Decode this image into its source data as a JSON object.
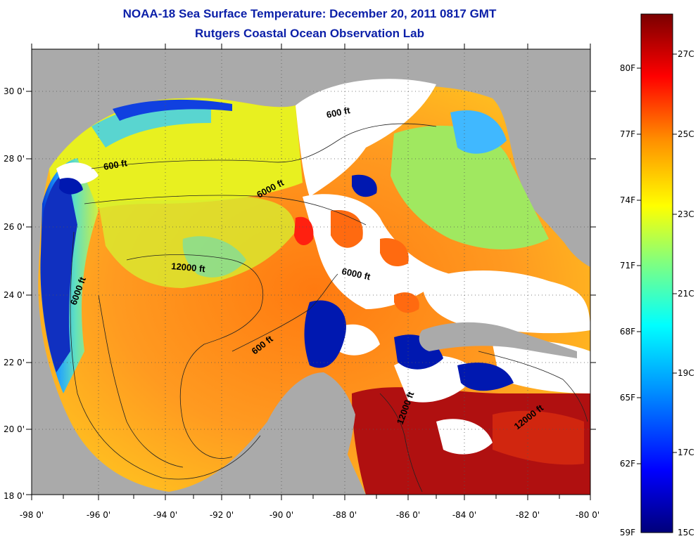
{
  "title": "NOAA-18 Sea Surface Temperature:  December 20, 2011 0817 GMT",
  "subtitle": "Rutgers Coastal Ocean Observation Lab",
  "map": {
    "lat_labels": [
      "30 0'",
      "28 0'",
      "26 0'",
      "24 0'",
      "22 0'",
      "20 0'",
      "18 0'"
    ],
    "lon_labels": [
      "-98 0'",
      "-96 0'",
      "-94 0'",
      "-92 0'",
      "-90 0'",
      "-88 0'",
      "-86 0'",
      "-84 0'",
      "-82 0'",
      "-80 0'"
    ],
    "contour_labels": [
      "600 ft",
      "600 ft",
      "6000 ft",
      "12000 ft",
      "6000 ft",
      "6000 ft",
      "600 ft",
      "12000 ft",
      "12000 ft"
    ],
    "land_color": "#aaaaaa",
    "cloud_color": "#ffffff"
  },
  "colorbar": {
    "fahrenheit_labels": [
      "80F",
      "77F",
      "74F",
      "71F",
      "68F",
      "65F",
      "62F",
      "59F"
    ],
    "celsius_labels": [
      "27C",
      "25C",
      "23C",
      "21C",
      "19C",
      "17C",
      "15C"
    ],
    "colors": [
      "#000080",
      "#0000ff",
      "#00aaff",
      "#00ffff",
      "#80ff80",
      "#ffff00",
      "#ff8000",
      "#ff0000",
      "#800000"
    ]
  }
}
